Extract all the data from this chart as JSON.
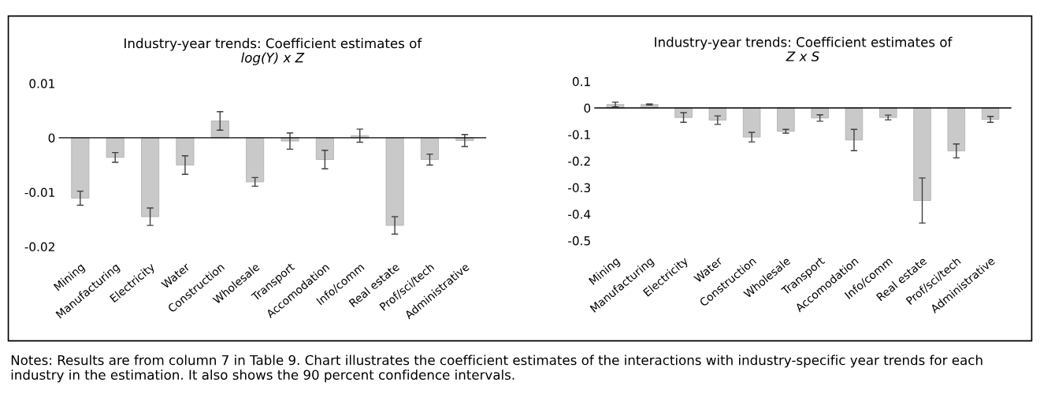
{
  "chart_data": [
    {
      "type": "bar",
      "title": "Industry-year trends: Coefficient estimates of",
      "subtitle": "log(Y) x Z",
      "categories": [
        "Mining",
        "Manufacturing",
        "Electricity",
        "Water",
        "Construction",
        "Wholesale",
        "Transport",
        "Accomodation",
        "Info/comm",
        "Real estate",
        "Prof/sci/tech",
        "Administrative"
      ],
      "values": [
        -0.0111,
        -0.0036,
        -0.0145,
        -0.005,
        0.0031,
        -0.0081,
        -0.0006,
        -0.004,
        0.0004,
        -0.0161,
        -0.004,
        -0.0005
      ],
      "errors": [
        0.0013,
        0.0009,
        0.0016,
        0.0017,
        0.0017,
        0.0008,
        0.0015,
        0.0017,
        0.0012,
        0.0016,
        0.001,
        0.0011
      ],
      "color": "#c9c9c9",
      "ylim": [
        -0.02,
        0.01
      ],
      "yticks": [
        {
          "value": -0.02,
          "label": "-0.02"
        },
        {
          "value": -0.01,
          "label": "-0.01"
        },
        0,
        0.01
      ]
    },
    {
      "type": "bar",
      "title": "Industry-year trends: Coefficient estimates of",
      "subtitle": "Z x S",
      "categories": [
        "Mining",
        "Manufacturing",
        "Electricity",
        "Water",
        "Construction",
        "Wholesale",
        "Transport",
        "Accomodation",
        "Info/comm",
        "Real estate",
        "Prof/sci/tech",
        "Administrative"
      ],
      "values": [
        0.013,
        0.013,
        -0.036,
        -0.046,
        -0.11,
        -0.088,
        -0.038,
        -0.121,
        -0.036,
        -0.349,
        -0.162,
        -0.043
      ],
      "errors": [
        0.009,
        0.002,
        0.018,
        0.016,
        0.018,
        0.007,
        0.012,
        0.04,
        0.009,
        0.085,
        0.026,
        0.011
      ],
      "color": "#c9c9c9",
      "ylim": [
        -0.5,
        0.1
      ],
      "yticks": [
        {
          "value": -0.5,
          "label": "-0.5"
        },
        {
          "value": -0.4,
          "label": "-0.4"
        },
        {
          "value": -0.3,
          "label": "-0.3"
        },
        {
          "value": -0.2,
          "label": "-0.2"
        },
        {
          "value": -0.1,
          "label": "-0.1"
        },
        0,
        0.1
      ],
      "annotations": [
        "Notes: Results are from column 7 in Table 9. Chart illustrates the coefficient estimates of the interactions with industry-specific year trends for each industry in the estimation. It also shows the 90 percent confidence intervals."
      ]
    }
  ]
}
